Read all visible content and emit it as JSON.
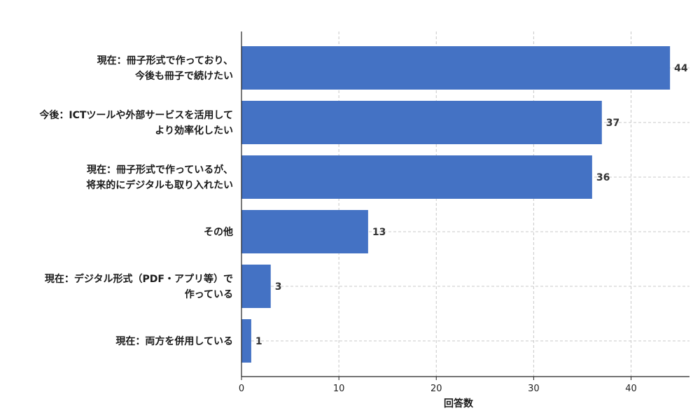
{
  "chart_data": {
    "type": "bar",
    "orientation": "horizontal",
    "categories": [
      [
        "現在：冊子形式で作っており、",
        "今後も冊子で続けたい"
      ],
      [
        "今後：ICTツールや外部サービスを活用して",
        "より効率化したい"
      ],
      [
        "現在：冊子形式で作っているが、",
        "将来的にデジタルも取り入れたい"
      ],
      [
        "その他"
      ],
      [
        "現在：デジタル形式（PDF・アプリ等）で",
        "作っている"
      ],
      [
        "現在：両方を併用している"
      ]
    ],
    "values": [
      44,
      37,
      36,
      13,
      3,
      1
    ],
    "xlabel": "回答数",
    "ylabel": "",
    "xlim": [
      0,
      46
    ],
    "xticks": [
      0,
      10,
      20,
      30,
      40
    ],
    "grid": true,
    "bar_color": "#4472c4",
    "grid_color": "#c8c8c8"
  }
}
